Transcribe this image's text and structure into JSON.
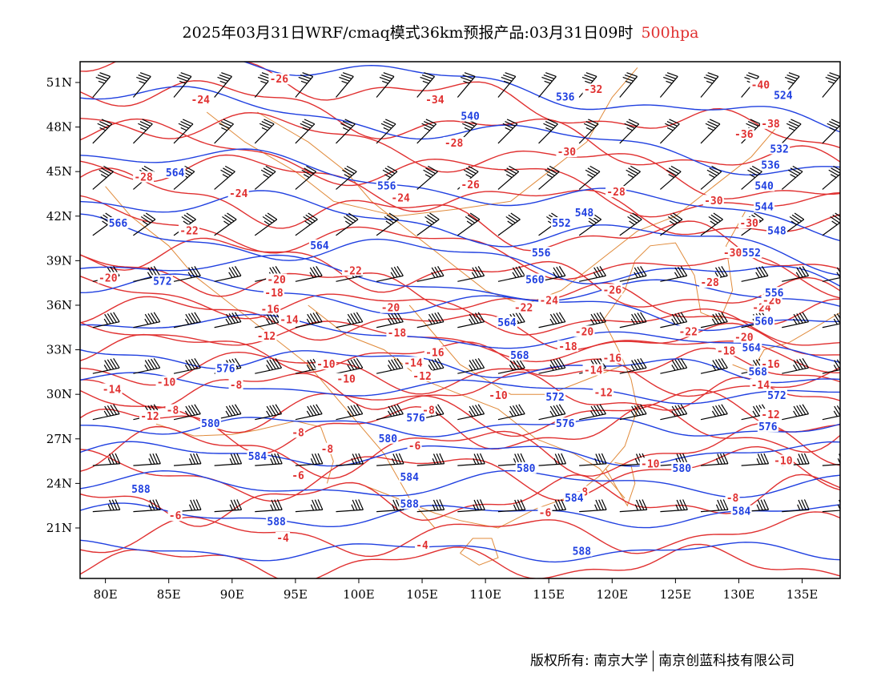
{
  "title": {
    "main": "2025年03月31日WRF/cmaq模式36km预报产品:03月31日09时",
    "level": "500hpa"
  },
  "axes": {
    "lon_labels": [
      "80E",
      "85E",
      "90E",
      "95E",
      "100E",
      "105E",
      "110E",
      "115E",
      "120E",
      "125E",
      "130E",
      "135E"
    ],
    "lat_labels": [
      "51N",
      "48N",
      "45N",
      "42N",
      "39N",
      "36N",
      "33N",
      "30N",
      "27N",
      "24N",
      "21N"
    ]
  },
  "colors": {
    "geopotential": "#2040e0",
    "temperature": "#e03030",
    "border": "#e08a3a",
    "barb": "#000000"
  },
  "height_labels": [
    {
      "text": "564",
      "lon": 85.5,
      "lat": 44.9
    },
    {
      "text": "540",
      "lon": 108.8,
      "lat": 48.7
    },
    {
      "text": "536",
      "lon": 116.3,
      "lat": 50.0
    },
    {
      "text": "556",
      "lon": 102.2,
      "lat": 44.0
    },
    {
      "text": "566",
      "lon": 81.0,
      "lat": 41.5
    },
    {
      "text": "564",
      "lon": 96.9,
      "lat": 40.0
    },
    {
      "text": "548",
      "lon": 117.8,
      "lat": 42.2
    },
    {
      "text": "552",
      "lon": 116.0,
      "lat": 41.5
    },
    {
      "text": "556",
      "lon": 114.4,
      "lat": 39.5
    },
    {
      "text": "572",
      "lon": 84.5,
      "lat": 37.6
    },
    {
      "text": "560",
      "lon": 113.9,
      "lat": 37.7
    },
    {
      "text": "564",
      "lon": 111.7,
      "lat": 34.8
    },
    {
      "text": "568",
      "lon": 112.7,
      "lat": 32.6
    },
    {
      "text": "576",
      "lon": 89.5,
      "lat": 31.7
    },
    {
      "text": "572",
      "lon": 115.5,
      "lat": 29.8
    },
    {
      "text": "572",
      "lon": 133.0,
      "lat": 29.9
    },
    {
      "text": "576",
      "lon": 116.3,
      "lat": 28.0
    },
    {
      "text": "576",
      "lon": 132.3,
      "lat": 27.8
    },
    {
      "text": "576",
      "lon": 104.5,
      "lat": 28.4
    },
    {
      "text": "580",
      "lon": 88.3,
      "lat": 28.0
    },
    {
      "text": "580",
      "lon": 102.3,
      "lat": 27.0
    },
    {
      "text": "584",
      "lon": 92.0,
      "lat": 25.8
    },
    {
      "text": "580",
      "lon": 113.2,
      "lat": 25.0
    },
    {
      "text": "584",
      "lon": 104.0,
      "lat": 24.4
    },
    {
      "text": "580",
      "lon": 125.5,
      "lat": 25.0
    },
    {
      "text": "588",
      "lon": 82.8,
      "lat": 23.6
    },
    {
      "text": "588",
      "lon": 104.0,
      "lat": 22.6
    },
    {
      "text": "588",
      "lon": 93.5,
      "lat": 21.4
    },
    {
      "text": "584",
      "lon": 117.0,
      "lat": 23.0
    },
    {
      "text": "584",
      "lon": 130.2,
      "lat": 22.1
    },
    {
      "text": "588",
      "lon": 117.6,
      "lat": 19.4
    },
    {
      "text": "544",
      "lon": 132.0,
      "lat": 42.6
    },
    {
      "text": "540",
      "lon": 132.0,
      "lat": 44.0
    },
    {
      "text": "536",
      "lon": 132.5,
      "lat": 45.4
    },
    {
      "text": "532",
      "lon": 133.2,
      "lat": 46.5
    },
    {
      "text": "524",
      "lon": 133.5,
      "lat": 50.1
    },
    {
      "text": "548",
      "lon": 133.0,
      "lat": 41.0
    },
    {
      "text": "552",
      "lon": 131.0,
      "lat": 39.5
    },
    {
      "text": "556",
      "lon": 132.8,
      "lat": 36.8
    },
    {
      "text": "560",
      "lon": 132.0,
      "lat": 34.9
    },
    {
      "text": "564",
      "lon": 131.0,
      "lat": 33.1
    },
    {
      "text": "568",
      "lon": 131.5,
      "lat": 31.5
    }
  ],
  "temperature_labels": [
    {
      "text": "-26",
      "lon": 93.7,
      "lat": 51.2
    },
    {
      "text": "-24",
      "lon": 87.5,
      "lat": 49.8
    },
    {
      "text": "-34",
      "lon": 106.0,
      "lat": 49.8
    },
    {
      "text": "-32",
      "lon": 118.5,
      "lat": 50.5
    },
    {
      "text": "-40",
      "lon": 131.7,
      "lat": 50.8
    },
    {
      "text": "-38",
      "lon": 132.5,
      "lat": 48.2
    },
    {
      "text": "-36",
      "lon": 130.4,
      "lat": 47.5
    },
    {
      "text": "-28",
      "lon": 83.0,
      "lat": 44.6
    },
    {
      "text": "-28",
      "lon": 107.5,
      "lat": 46.9
    },
    {
      "text": "-30",
      "lon": 116.4,
      "lat": 46.3
    },
    {
      "text": "-26",
      "lon": 108.8,
      "lat": 44.1
    },
    {
      "text": "-24",
      "lon": 90.5,
      "lat": 43.5
    },
    {
      "text": "-24",
      "lon": 103.3,
      "lat": 43.2
    },
    {
      "text": "-28",
      "lon": 120.3,
      "lat": 43.6
    },
    {
      "text": "-30",
      "lon": 128.0,
      "lat": 43.0
    },
    {
      "text": "-22",
      "lon": 86.6,
      "lat": 41.0
    },
    {
      "text": "-30",
      "lon": 129.5,
      "lat": 39.5
    },
    {
      "text": "-22",
      "lon": 99.5,
      "lat": 38.3
    },
    {
      "text": "-20",
      "lon": 80.2,
      "lat": 37.8
    },
    {
      "text": "-20",
      "lon": 93.5,
      "lat": 37.7
    },
    {
      "text": "-18",
      "lon": 93.3,
      "lat": 36.8
    },
    {
      "text": "-16",
      "lon": 93.0,
      "lat": 35.7
    },
    {
      "text": "-14",
      "lon": 94.5,
      "lat": 35.0
    },
    {
      "text": "-12",
      "lon": 92.7,
      "lat": 33.9
    },
    {
      "text": "-20",
      "lon": 102.5,
      "lat": 35.8
    },
    {
      "text": "-18",
      "lon": 103.0,
      "lat": 34.1
    },
    {
      "text": "-16",
      "lon": 106.0,
      "lat": 32.8
    },
    {
      "text": "-14",
      "lon": 104.3,
      "lat": 32.1
    },
    {
      "text": "-12",
      "lon": 105.0,
      "lat": 31.2
    },
    {
      "text": "-10",
      "lon": 97.4,
      "lat": 32.0
    },
    {
      "text": "-10",
      "lon": 99.0,
      "lat": 31.0
    },
    {
      "text": "-10",
      "lon": 84.8,
      "lat": 30.8
    },
    {
      "text": "-8",
      "lon": 90.3,
      "lat": 30.6
    },
    {
      "text": "-14",
      "lon": 80.5,
      "lat": 30.3
    },
    {
      "text": "-12",
      "lon": 83.5,
      "lat": 28.5
    },
    {
      "text": "-8",
      "lon": 85.3,
      "lat": 28.9
    },
    {
      "text": "-8",
      "lon": 95.2,
      "lat": 27.4
    },
    {
      "text": "-8",
      "lon": 105.5,
      "lat": 28.9
    },
    {
      "text": "-6",
      "lon": 104.4,
      "lat": 26.5
    },
    {
      "text": "-8",
      "lon": 97.5,
      "lat": 26.3
    },
    {
      "text": "-6",
      "lon": 95.2,
      "lat": 24.5
    },
    {
      "text": "-6",
      "lon": 85.5,
      "lat": 21.8
    },
    {
      "text": "-4",
      "lon": 94.0,
      "lat": 20.3
    },
    {
      "text": "-4",
      "lon": 105.0,
      "lat": 19.8
    },
    {
      "text": "-6",
      "lon": 114.7,
      "lat": 22.0
    },
    {
      "text": "-8",
      "lon": 117.6,
      "lat": 23.4
    },
    {
      "text": "-10",
      "lon": 111.0,
      "lat": 29.9
    },
    {
      "text": "-12",
      "lon": 119.3,
      "lat": 30.1
    },
    {
      "text": "-14",
      "lon": 118.5,
      "lat": 31.6
    },
    {
      "text": "-16",
      "lon": 120.0,
      "lat": 32.4
    },
    {
      "text": "-18",
      "lon": 116.5,
      "lat": 33.2
    },
    {
      "text": "-20",
      "lon": 117.8,
      "lat": 34.2
    },
    {
      "text": "-22",
      "lon": 113.0,
      "lat": 35.8
    },
    {
      "text": "-24",
      "lon": 115.0,
      "lat": 36.3
    },
    {
      "text": "-26",
      "lon": 120.0,
      "lat": 37.0
    },
    {
      "text": "-28",
      "lon": 127.7,
      "lat": 37.5
    },
    {
      "text": "-24",
      "lon": 131.8,
      "lat": 35.8
    },
    {
      "text": "-26",
      "lon": 132.6,
      "lat": 36.3
    },
    {
      "text": "-22",
      "lon": 126.0,
      "lat": 34.2
    },
    {
      "text": "-20",
      "lon": 130.4,
      "lat": 33.8
    },
    {
      "text": "-18",
      "lon": 129.0,
      "lat": 32.9
    },
    {
      "text": "-16",
      "lon": 132.5,
      "lat": 32.0
    },
    {
      "text": "-14",
      "lon": 131.7,
      "lat": 30.6
    },
    {
      "text": "-12",
      "lon": 132.5,
      "lat": 28.6
    },
    {
      "text": "-10",
      "lon": 123.0,
      "lat": 25.3
    },
    {
      "text": "-10",
      "lon": 133.5,
      "lat": 25.5
    },
    {
      "text": "-8",
      "lon": 129.5,
      "lat": 23.0
    },
    {
      "text": "-30",
      "lon": 130.8,
      "lat": 41.5
    }
  ],
  "footer": {
    "left": "版权所有: 南京大学",
    "right": "南京创蓝科技有限公司"
  }
}
